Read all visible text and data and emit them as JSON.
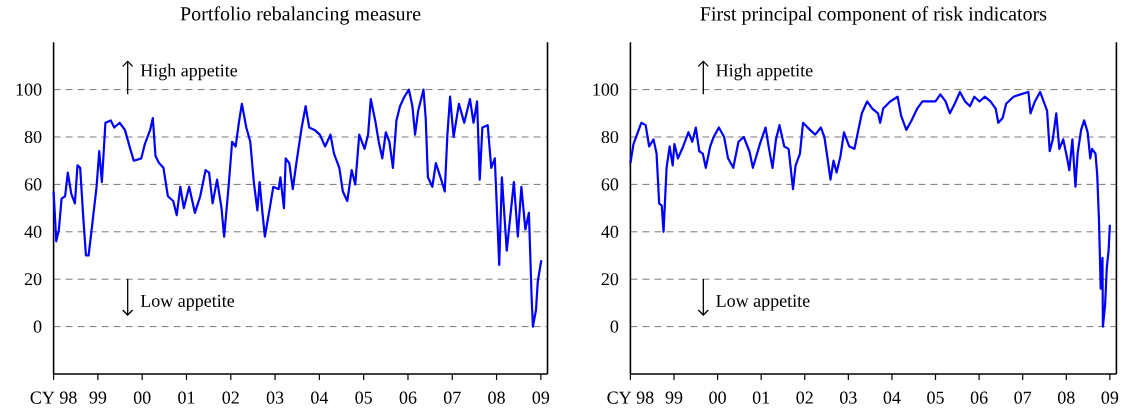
{
  "chart_data": [
    {
      "type": "line",
      "title": "Portfolio rebalancing measure",
      "color": "#0000ff",
      "grid": "y",
      "xlim": [
        1998,
        2009.15
      ],
      "ylim": [
        -20,
        120
      ],
      "yticks": [
        0,
        20,
        40,
        60,
        80,
        100
      ],
      "xticks": [
        {
          "value": 1998,
          "label": "CY 98"
        },
        {
          "value": 1999,
          "label": "99"
        },
        {
          "value": 2000,
          "label": "00"
        },
        {
          "value": 2001,
          "label": "01"
        },
        {
          "value": 2002,
          "label": "02"
        },
        {
          "value": 2003,
          "label": "03"
        },
        {
          "value": 2004,
          "label": "04"
        },
        {
          "value": 2005,
          "label": "05"
        },
        {
          "value": 2006,
          "label": "06"
        },
        {
          "value": 2007,
          "label": "07"
        },
        {
          "value": 2008,
          "label": "08"
        },
        {
          "value": 2009,
          "label": "09"
        }
      ],
      "annotations": [
        "High appetite",
        "Low appetite"
      ],
      "x": [
        1998.0,
        1998.06,
        1998.12,
        1998.18,
        1998.26,
        1998.32,
        1998.4,
        1998.48,
        1998.54,
        1998.6,
        1998.67,
        1998.73,
        1998.79,
        1998.89,
        1998.97,
        1999.03,
        1999.09,
        1999.17,
        1999.29,
        1999.37,
        1999.49,
        1999.61,
        1999.73,
        1999.81,
        1999.98,
        2000.06,
        2000.18,
        2000.24,
        2000.3,
        2000.38,
        2000.48,
        2000.58,
        2000.7,
        2000.78,
        2000.86,
        2000.94,
        2001.06,
        2001.19,
        2001.31,
        2001.43,
        2001.51,
        2001.59,
        2001.69,
        2001.79,
        2001.85,
        2001.95,
        2002.03,
        2002.11,
        2002.19,
        2002.25,
        2002.35,
        2002.44,
        2002.52,
        2002.6,
        2002.65,
        2002.72,
        2002.77,
        2002.88,
        2002.96,
        2003.08,
        2003.12,
        2003.2,
        2003.24,
        2003.32,
        2003.4,
        2003.48,
        2003.6,
        2003.69,
        2003.77,
        2003.89,
        2004.01,
        2004.13,
        2004.25,
        2004.33,
        2004.45,
        2004.53,
        2004.63,
        2004.73,
        2004.81,
        2004.9,
        2005.02,
        2005.1,
        2005.16,
        2005.26,
        2005.34,
        2005.42,
        2005.5,
        2005.58,
        2005.66,
        2005.74,
        2005.82,
        2005.92,
        2006.02,
        2006.1,
        2006.16,
        2006.23,
        2006.35,
        2006.4,
        2006.45,
        2006.55,
        2006.63,
        2006.75,
        2006.83,
        2006.89,
        2006.95,
        2007.03,
        2007.15,
        2007.27,
        2007.4,
        2007.48,
        2007.56,
        2007.62,
        2007.68,
        2007.8,
        2007.88,
        2007.96,
        2008.06,
        2008.12,
        2008.23,
        2008.39,
        2008.48,
        2008.56,
        2008.65,
        2008.73,
        2008.79,
        2008.82,
        2008.89,
        2008.93,
        2009.01
      ],
      "values": [
        57,
        36,
        41,
        54,
        55,
        65,
        56,
        52,
        68,
        67,
        46,
        30,
        30,
        46,
        59,
        74,
        61,
        86,
        87,
        84,
        86,
        83,
        75,
        70,
        71,
        77,
        83,
        88,
        72,
        69,
        67,
        55,
        53,
        47,
        59,
        50,
        59,
        48,
        55,
        66,
        65,
        52,
        62,
        50,
        38,
        59,
        78,
        76,
        87,
        94,
        84,
        78,
        61,
        49,
        61,
        47,
        38,
        50,
        59,
        58,
        63,
        50,
        71,
        69,
        58,
        69,
        84,
        93,
        84,
        83,
        81,
        76,
        81,
        73,
        67,
        57,
        53,
        66,
        60,
        81,
        75,
        81,
        96,
        87,
        78,
        71,
        82,
        78,
        67,
        87,
        93,
        97,
        100,
        93,
        81,
        91,
        100,
        88,
        63,
        59,
        69,
        62,
        57,
        81,
        97,
        80,
        94,
        86,
        96,
        86,
        95,
        62,
        84,
        85,
        67,
        71,
        26,
        63,
        32,
        61,
        38,
        59,
        41,
        48,
        13,
        0,
        7,
        19,
        28
      ]
    },
    {
      "type": "line",
      "title": "First principal component of risk indicators",
      "color": "#0000ff",
      "grid": "y",
      "xlim": [
        1998,
        2009.15
      ],
      "ylim": [
        -20,
        120
      ],
      "yticks": [
        0,
        20,
        40,
        60,
        80,
        100
      ],
      "xticks": [
        {
          "value": 1998,
          "label": "CY 98"
        },
        {
          "value": 1999,
          "label": "99"
        },
        {
          "value": 2000,
          "label": "00"
        },
        {
          "value": 2001,
          "label": "01"
        },
        {
          "value": 2002,
          "label": "02"
        },
        {
          "value": 2003,
          "label": "03"
        },
        {
          "value": 2004,
          "label": "04"
        },
        {
          "value": 2005,
          "label": "05"
        },
        {
          "value": 2006,
          "label": "06"
        },
        {
          "value": 2007,
          "label": "07"
        },
        {
          "value": 2008,
          "label": "08"
        },
        {
          "value": 2009,
          "label": "09"
        }
      ],
      "annotations": [
        "High appetite",
        "Low appetite"
      ],
      "x": [
        1998.0,
        1998.07,
        1998.15,
        1998.25,
        1998.35,
        1998.43,
        1998.53,
        1998.6,
        1998.66,
        1998.72,
        1998.76,
        1998.83,
        1998.9,
        1998.97,
        1999.01,
        1999.09,
        1999.21,
        1999.33,
        1999.42,
        1999.5,
        1999.58,
        1999.66,
        1999.73,
        1999.83,
        1999.91,
        2000.03,
        2000.15,
        2000.24,
        2000.36,
        2000.48,
        2000.6,
        2000.73,
        2000.81,
        2000.89,
        2000.97,
        2001.1,
        2001.18,
        2001.26,
        2001.34,
        2001.42,
        2001.53,
        2001.63,
        2001.73,
        2001.79,
        2001.89,
        2001.96,
        2002.12,
        2002.24,
        2002.37,
        2002.45,
        2002.53,
        2002.59,
        2002.66,
        2002.73,
        2002.82,
        2002.9,
        2003.02,
        2003.14,
        2003.31,
        2003.43,
        2003.55,
        2003.68,
        2003.73,
        2003.8,
        2003.96,
        2004.13,
        2004.21,
        2004.33,
        2004.45,
        2004.58,
        2004.7,
        2004.86,
        2005.0,
        2005.11,
        2005.23,
        2005.33,
        2005.44,
        2005.56,
        2005.68,
        2005.79,
        2005.89,
        2006.01,
        2006.13,
        2006.26,
        2006.38,
        2006.44,
        2006.54,
        2006.62,
        2006.79,
        2006.95,
        2007.13,
        2007.18,
        2007.28,
        2007.4,
        2007.48,
        2007.56,
        2007.62,
        2007.69,
        2007.77,
        2007.84,
        2007.93,
        2008.02,
        2008.07,
        2008.14,
        2008.21,
        2008.26,
        2008.34,
        2008.41,
        2008.49,
        2008.55,
        2008.59,
        2008.67,
        2008.71,
        2008.75,
        2008.79,
        2008.83,
        2008.84,
        2008.89,
        2008.93,
        2008.97,
        2009.0
      ],
      "values": [
        69,
        77,
        81,
        86,
        85,
        76,
        79,
        73,
        52,
        51,
        40,
        67,
        76,
        68,
        77,
        71,
        76,
        82,
        78,
        84,
        74,
        73,
        67,
        76,
        80,
        84,
        80,
        71,
        67,
        78,
        80,
        74,
        67,
        72,
        77,
        84,
        75,
        67,
        79,
        85,
        76,
        75,
        58,
        68,
        73,
        86,
        83,
        81,
        84,
        80,
        70,
        62,
        70,
        65,
        72,
        82,
        76,
        75,
        90,
        95,
        92,
        90,
        86,
        92,
        95,
        97,
        89,
        83,
        87,
        92,
        95,
        95,
        95,
        98,
        95,
        90,
        94,
        99,
        95,
        93,
        97,
        95,
        97,
        95,
        92,
        86,
        88,
        94,
        97,
        98,
        99,
        90,
        95,
        99,
        95,
        91,
        74,
        79,
        90,
        75,
        79,
        71,
        66,
        79,
        59,
        73,
        83,
        87,
        82,
        71,
        75,
        73,
        64,
        45,
        16,
        29,
        0,
        9,
        25,
        32,
        43
      ]
    }
  ]
}
